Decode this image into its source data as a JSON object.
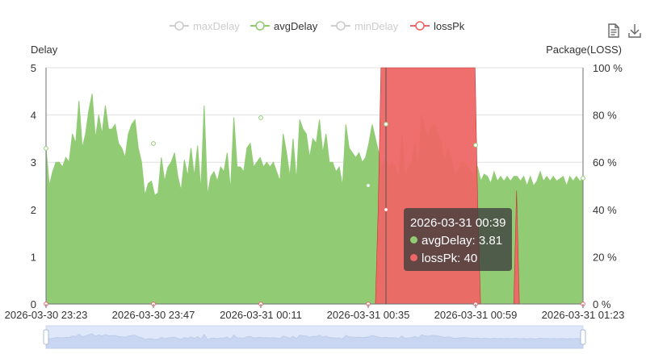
{
  "legend": {
    "items": [
      {
        "label": "maxDelay",
        "color": "#cccccc",
        "active": false
      },
      {
        "label": "avgDelay",
        "color": "#91cc75",
        "active": true
      },
      {
        "label": "minDelay",
        "color": "#cccccc",
        "active": false
      },
      {
        "label": "lossPk",
        "color": "#ee6666",
        "active": true
      }
    ]
  },
  "toolbox": {
    "data_view_icon": "data-view-icon",
    "download_icon": "download-icon"
  },
  "chart_data": {
    "type": "area",
    "title": "",
    "y_left": {
      "label": "Delay",
      "min": 0,
      "max": 5,
      "ticks": [
        "0",
        "1",
        "2",
        "3",
        "4",
        "5"
      ]
    },
    "y_right": {
      "label": "Package(LOSS)",
      "min": 0,
      "max": 100,
      "ticks": [
        "0 %",
        "20 %",
        "40 %",
        "60 %",
        "80 %",
        "100 %"
      ]
    },
    "x_tick_labels": [
      "2026-03-30 23:23",
      "2026-03-30 23:47",
      "2026-03-31 00:11",
      "2026-03-31 00:35",
      "2026-03-31 00:59",
      "2026-03-31 01:23"
    ],
    "grid": true,
    "legend_position": "top-center",
    "series": [
      {
        "name": "avgDelay",
        "color": "#91cc75",
        "axis": "left",
        "values": [
          3.3,
          2.5,
          2.8,
          3.0,
          3.0,
          2.9,
          3.1,
          3.0,
          3.6,
          3.4,
          4.3,
          3.3,
          3.6,
          4.1,
          4.45,
          3.5,
          4.0,
          3.6,
          4.2,
          3.7,
          3.7,
          3.8,
          3.4,
          3.3,
          3.1,
          3.6,
          3.8,
          3.9,
          3.3,
          3.0,
          2.3,
          2.55,
          2.6,
          2.3,
          2.35,
          3.1,
          2.6,
          2.9,
          3.0,
          3.2,
          2.7,
          2.4,
          3.05,
          2.7,
          3.3,
          2.7,
          3.35,
          2.4,
          4.2,
          2.3,
          2.7,
          2.8,
          2.6,
          2.9,
          2.8,
          3.2,
          2.4,
          3.95,
          2.9,
          2.9,
          2.8,
          3.3,
          3.4,
          2.9,
          3.0,
          3.1,
          2.9,
          3.0,
          2.9,
          3.0,
          2.8,
          2.6,
          3.6,
          3.2,
          2.7,
          3.5,
          2.6,
          3.9,
          3.7,
          3.6,
          3.1,
          3.5,
          3.4,
          3.9,
          3.2,
          3.6,
          3.0,
          3.0,
          2.8,
          2.9,
          2.5,
          3.8,
          3.3,
          3.2,
          3.1,
          3.2,
          3.0,
          3.1,
          3.4,
          3.8,
          3.5,
          3.2,
          2.9,
          3.1,
          2.9,
          3.0,
          2.9,
          2.6,
          3.6,
          2.7,
          2.9,
          3.0,
          3.4,
          2.9,
          4.0,
          3.7,
          3.5,
          3.8,
          3.8,
          3.6,
          3.4,
          3.0,
          3.3,
          3.1,
          2.7,
          2.8,
          3.0,
          3.0,
          2.9,
          2.8,
          2.7,
          2.9,
          2.6,
          2.75,
          2.7,
          2.55,
          2.8,
          2.6,
          2.7,
          2.6,
          2.7,
          2.6,
          2.7,
          2.7,
          2.6,
          2.7,
          2.5,
          2.7,
          2.5,
          2.6,
          2.8,
          2.6,
          2.7,
          2.6,
          2.7,
          2.6,
          2.65,
          2.7,
          2.5,
          2.7,
          2.6,
          2.7,
          2.6,
          2.65
        ]
      },
      {
        "name": "lossPk",
        "color": "#ee6666",
        "axis": "right",
        "values": [
          0,
          0,
          0,
          0,
          0,
          0,
          0,
          0,
          0,
          0,
          0,
          0,
          0,
          0,
          0,
          0,
          0,
          0,
          0,
          0,
          0,
          0,
          0,
          0,
          0,
          0,
          0,
          0,
          0,
          0,
          0,
          0,
          0,
          0,
          0,
          0,
          0,
          0,
          0,
          0,
          0,
          0,
          0,
          0,
          0,
          0,
          0,
          0,
          0,
          0,
          0,
          0,
          0,
          0,
          0,
          0,
          0,
          0,
          0,
          0,
          0,
          0,
          0,
          0,
          0,
          0,
          0,
          0,
          0,
          0,
          0,
          0,
          0,
          0,
          0,
          0,
          0,
          0,
          0,
          0,
          0,
          0,
          0,
          0,
          0,
          0,
          0,
          0,
          0,
          0,
          0,
          0,
          0,
          0,
          0,
          0,
          0,
          0,
          0,
          0,
          0,
          0,
          0,
          0,
          0,
          0,
          0,
          0,
          0,
          0,
          0,
          0,
          0,
          0,
          0,
          0,
          0,
          0,
          0,
          0,
          40,
          100,
          100,
          100,
          100,
          100,
          100,
          100,
          100,
          100,
          100,
          100,
          100,
          100,
          100,
          100,
          100,
          100,
          100,
          100,
          100,
          100,
          100,
          100,
          100,
          100,
          100,
          100,
          100,
          100,
          100,
          100,
          100,
          100,
          100,
          100,
          40,
          0,
          0,
          0,
          0,
          0,
          0,
          0,
          0,
          0,
          0,
          0,
          0,
          0,
          48,
          0,
          0,
          0,
          0,
          0,
          0,
          0,
          0,
          0,
          0,
          0,
          0,
          0,
          0,
          0,
          0,
          0,
          0,
          0,
          0,
          0,
          0,
          0,
          0
        ]
      }
    ]
  },
  "tooltip": {
    "title": "2026-03-31 00:39",
    "rows": [
      {
        "series": "avgDelay",
        "color": "#91cc75",
        "text": "avgDelay: 3.81"
      },
      {
        "series": "lossPk",
        "color": "#ee6666",
        "text": "lossPk: 40"
      }
    ]
  }
}
